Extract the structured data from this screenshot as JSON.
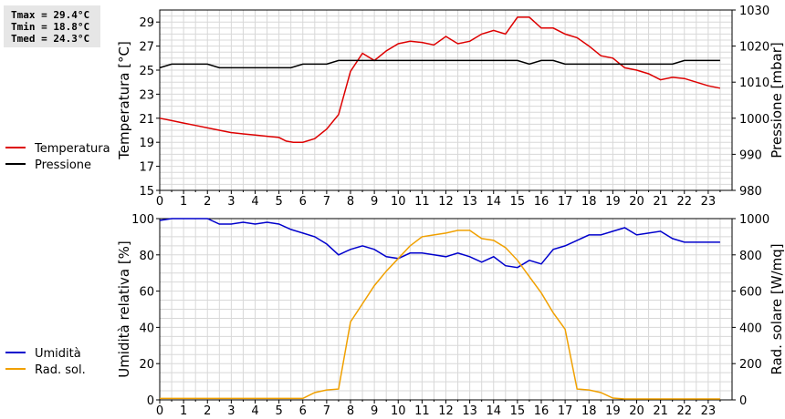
{
  "stats": {
    "tmax": "Tmax = 29.4°C",
    "tmin": "Tmin = 18.8°C",
    "tmed": "Tmed = 24.3°C"
  },
  "chart_data": [
    {
      "type": "line",
      "x_ticks": [
        "0",
        "1",
        "2",
        "3",
        "4",
        "5",
        "6",
        "7",
        "8",
        "9",
        "10",
        "11",
        "12",
        "13",
        "14",
        "15",
        "16",
        "17",
        "18",
        "19",
        "20",
        "21",
        "22",
        "23"
      ],
      "xlim": [
        0,
        24
      ],
      "ylabel_left": "Temperatura [°C]",
      "ylabel_right": "Pressione [mbar]",
      "ylim_left": [
        15,
        30
      ],
      "ylim_right": [
        980,
        1030
      ],
      "yticks_left": [
        15,
        17,
        19,
        21,
        23,
        25,
        27,
        29
      ],
      "yticks_right": [
        980,
        990,
        1000,
        1010,
        1020,
        1030
      ],
      "grid": true,
      "series": [
        {
          "name": "Temperatura",
          "axis": "left",
          "color": "#dd0000",
          "x": [
            0,
            0.5,
            1,
            1.5,
            2,
            2.5,
            3,
            3.5,
            4,
            4.5,
            5,
            5.3,
            5.6,
            6,
            6.5,
            7,
            7.5,
            8,
            8.5,
            9,
            9.5,
            10,
            10.5,
            11,
            11.5,
            12,
            12.5,
            13,
            13.5,
            14,
            14.5,
            15,
            15.5,
            16,
            16.5,
            17,
            17.5,
            18,
            18.5,
            19,
            19.5,
            20,
            20.5,
            21,
            21.5,
            22,
            22.5,
            23,
            23.5
          ],
          "values": [
            21.0,
            20.8,
            20.6,
            20.4,
            20.2,
            20.0,
            19.8,
            19.7,
            19.6,
            19.5,
            19.4,
            19.1,
            19.0,
            19.0,
            19.3,
            20.1,
            21.3,
            24.9,
            26.4,
            25.8,
            26.6,
            27.2,
            27.4,
            27.3,
            27.1,
            27.8,
            27.2,
            27.4,
            28.0,
            28.3,
            28.0,
            29.4,
            29.4,
            28.5,
            28.5,
            28.0,
            27.7,
            27.0,
            26.2,
            26.0,
            25.2,
            25.0,
            24.7,
            24.2,
            24.4,
            24.3,
            24.0,
            23.7,
            23.5
          ]
        },
        {
          "name": "Pressione",
          "axis": "right",
          "color": "#000000",
          "x": [
            0,
            0.5,
            1,
            1.5,
            2,
            2.5,
            3,
            3.5,
            4,
            4.5,
            5,
            5.5,
            6,
            6.5,
            7,
            7.5,
            8,
            8.5,
            9,
            9.5,
            10,
            10.5,
            11,
            11.5,
            12,
            12.5,
            13,
            13.5,
            14,
            14.5,
            15,
            15.5,
            16,
            16.5,
            17,
            17.5,
            18,
            18.5,
            19,
            19.5,
            20,
            20.5,
            21,
            21.5,
            22,
            22.5,
            23,
            23.5
          ],
          "values": [
            1014,
            1015,
            1015,
            1015,
            1015,
            1014,
            1014,
            1014,
            1014,
            1014,
            1014,
            1014,
            1015,
            1015,
            1015,
            1016,
            1016,
            1016,
            1016,
            1016,
            1016,
            1016,
            1016,
            1016,
            1016,
            1016,
            1016,
            1016,
            1016,
            1016,
            1016,
            1015,
            1016,
            1016,
            1015,
            1015,
            1015,
            1015,
            1015,
            1015,
            1015,
            1015,
            1015,
            1015,
            1016,
            1016,
            1016,
            1016
          ]
        }
      ]
    },
    {
      "type": "line",
      "x_ticks": [
        "0",
        "1",
        "2",
        "3",
        "4",
        "5",
        "6",
        "7",
        "8",
        "9",
        "10",
        "11",
        "12",
        "13",
        "14",
        "15",
        "16",
        "17",
        "18",
        "19",
        "20",
        "21",
        "22",
        "23"
      ],
      "xlim": [
        0,
        24
      ],
      "ylabel_left": "Umidità relativa [%]",
      "ylabel_right": "Rad. solare [W/mq]",
      "ylim_left": [
        0,
        100
      ],
      "ylim_right": [
        0,
        1000
      ],
      "yticks_left": [
        0,
        20,
        40,
        60,
        80,
        100
      ],
      "yticks_right": [
        0,
        200,
        400,
        600,
        800,
        1000
      ],
      "grid": true,
      "series": [
        {
          "name": "Umidità",
          "axis": "left",
          "color": "#0000cc",
          "x": [
            0,
            0.5,
            1,
            1.5,
            2,
            2.5,
            3,
            3.5,
            4,
            4.5,
            5,
            5.5,
            6,
            6.5,
            7,
            7.5,
            8,
            8.5,
            9,
            9.5,
            10,
            10.5,
            11,
            11.5,
            12,
            12.5,
            13,
            13.5,
            14,
            14.5,
            15,
            15.5,
            16,
            16.5,
            17,
            17.5,
            18,
            18.5,
            19,
            19.5,
            20,
            20.5,
            21,
            21.5,
            22,
            22.5,
            23,
            23.5
          ],
          "values": [
            99,
            100,
            100,
            100,
            100,
            97,
            97,
            98,
            97,
            98,
            97,
            94,
            92,
            90,
            86,
            80,
            83,
            85,
            83,
            79,
            78,
            81,
            81,
            80,
            79,
            81,
            79,
            76,
            79,
            74,
            73,
            77,
            75,
            83,
            85,
            88,
            91,
            91,
            93,
            95,
            91,
            92,
            93,
            89,
            87,
            87,
            87,
            87
          ]
        },
        {
          "name": "Rad. sol.",
          "axis": "right",
          "color": "#f0a000",
          "x": [
            0,
            1,
            2,
            3,
            4,
            5,
            6,
            6.5,
            7,
            7.5,
            8,
            8.5,
            9,
            9.5,
            10,
            10.5,
            11,
            11.5,
            12,
            12.5,
            13,
            13.5,
            14,
            14.5,
            15,
            15.5,
            16,
            16.5,
            17,
            17.5,
            18,
            18.5,
            19,
            19.5,
            20,
            21,
            22,
            23,
            23.5
          ],
          "values": [
            8,
            8,
            8,
            8,
            8,
            8,
            8,
            40,
            55,
            60,
            430,
            530,
            630,
            710,
            780,
            850,
            900,
            910,
            920,
            935,
            935,
            890,
            880,
            840,
            770,
            680,
            590,
            480,
            390,
            60,
            55,
            40,
            10,
            5,
            5,
            5,
            5,
            5,
            5
          ]
        }
      ]
    }
  ]
}
